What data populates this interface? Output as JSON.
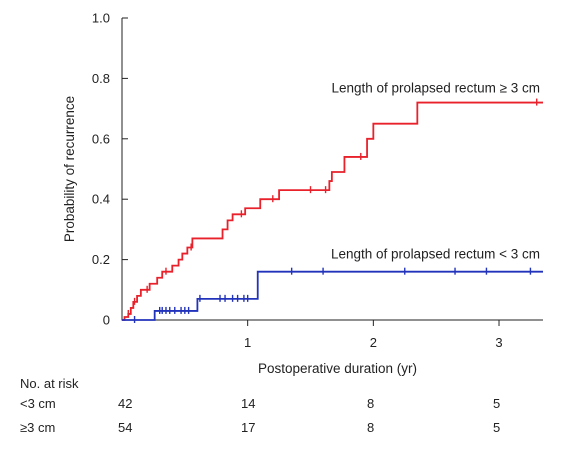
{
  "chart_data": {
    "type": "line",
    "chart_style": "step (Kaplan-Meier)",
    "xlabel": "Postoperative duration (yr)",
    "ylabel": "Probability of recurrence",
    "xlim": [
      0,
      3.35
    ],
    "ylim": [
      0,
      1.0
    ],
    "x_ticks": [
      1,
      2,
      3
    ],
    "y_ticks": [
      0,
      0.2,
      0.4,
      0.6,
      0.8,
      1.0
    ],
    "y_tick_labels": [
      "0",
      "0.2",
      "0.4",
      "0.6",
      "0.8",
      "1.0"
    ],
    "x_tick_labels": [
      "1",
      "2",
      "3"
    ],
    "grid": false,
    "series": [
      {
        "name": "Length of prolapsed rectum ≥3 cm",
        "color": "#e8212b",
        "x": [
          0,
          0.02,
          0.05,
          0.07,
          0.09,
          0.12,
          0.15,
          0.18,
          0.22,
          0.25,
          0.28,
          0.32,
          0.35,
          0.4,
          0.45,
          0.48,
          0.52,
          0.56,
          0.6,
          0.8,
          0.84,
          0.88,
          0.98,
          1.1,
          1.25,
          1.65,
          1.67,
          1.77,
          1.95,
          2.0,
          2.35,
          3.35
        ],
        "y": [
          0,
          0.01,
          0.02,
          0.04,
          0.06,
          0.08,
          0.1,
          0.1,
          0.12,
          0.12,
          0.14,
          0.16,
          0.16,
          0.18,
          0.2,
          0.22,
          0.24,
          0.27,
          0.27,
          0.3,
          0.33,
          0.35,
          0.37,
          0.4,
          0.43,
          0.46,
          0.49,
          0.54,
          0.6,
          0.65,
          0.72,
          0.72
        ],
        "censored_x": [
          0.05,
          0.1,
          0.2,
          0.35,
          0.55,
          0.95,
          1.2,
          1.5,
          1.62,
          1.9,
          3.3
        ]
      },
      {
        "name": "Length of prolapsed rectum <3 cm",
        "color": "#2233bb",
        "x": [
          0,
          0.24,
          0.26,
          0.6,
          1.08,
          3.35
        ],
        "y": [
          0,
          0,
          0.03,
          0.07,
          0.16,
          0.16
        ],
        "censored_x": [
          0.1,
          0.3,
          0.32,
          0.35,
          0.38,
          0.42,
          0.47,
          0.5,
          0.53,
          0.62,
          0.78,
          0.82,
          0.88,
          0.92,
          0.97,
          1.0,
          1.35,
          1.6,
          2.25,
          2.65,
          2.9,
          3.25
        ]
      }
    ],
    "annotations": [
      {
        "text": "Length of prolapsed rectum ≥ 3 cm",
        "x": 3.35,
        "y": 0.77,
        "anchor": "end"
      },
      {
        "text": "Length of prolapsed rectum < 3 cm",
        "x": 3.35,
        "y": 0.22,
        "anchor": "end"
      }
    ]
  },
  "risk_table": {
    "title": "No. at risk",
    "rows": [
      {
        "label": "<3 cm",
        "values": [
          "42",
          "14",
          "8",
          "5"
        ]
      },
      {
        "label": "≥3 cm",
        "values": [
          "54",
          "17",
          "8",
          "5"
        ]
      }
    ]
  }
}
